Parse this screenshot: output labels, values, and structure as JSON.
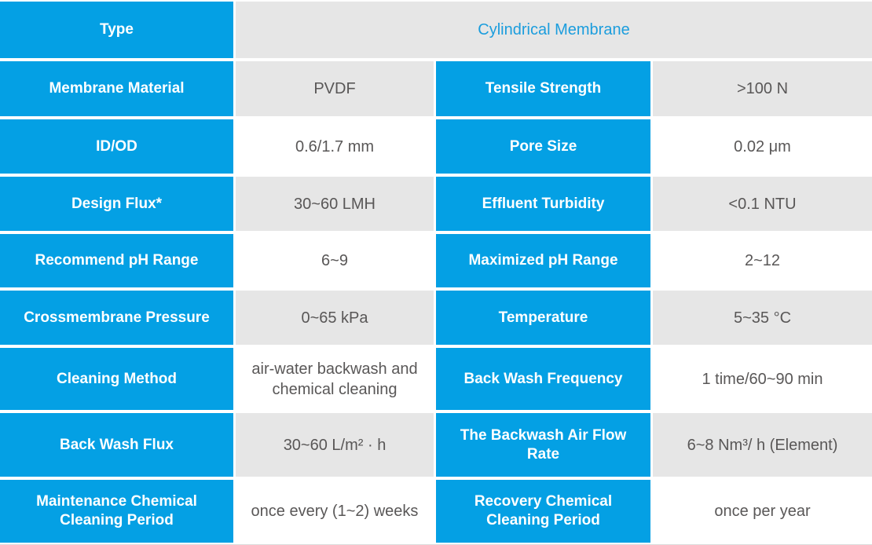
{
  "colors": {
    "header_blue": "#04a0e4",
    "cell_gray": "#e6e6e6",
    "cell_white": "#ffffff",
    "label_text": "#ffffff",
    "value_text": "#595757",
    "type_value_text": "#1b9ddd"
  },
  "table": {
    "title_row": {
      "label": "Type",
      "value": "Cylindrical Membrane"
    },
    "rows": [
      {
        "left_label": "Membrane Material",
        "left_value": "PVDF",
        "right_label": "Tensile Strength",
        "right_value": ">100 N"
      },
      {
        "left_label": "ID/OD",
        "left_value": "0.6/1.7 mm",
        "right_label": "Pore Size",
        "right_value": "0.02 μm"
      },
      {
        "left_label": "Design Flux*",
        "left_value": "30~60 LMH",
        "right_label": "Effluent Turbidity",
        "right_value": "<0.1 NTU"
      },
      {
        "left_label": "Recommend pH Range",
        "left_value": "6~9",
        "right_label": "Maximized pH Range",
        "right_value": "2~12"
      },
      {
        "left_label": "Crossmembrane Pressure",
        "left_value": "0~65 kPa",
        "right_label": "Temperature",
        "right_value": "5~35 °C"
      },
      {
        "left_label": "Cleaning Method",
        "left_value": "air-water backwash and chemical cleaning",
        "right_label": "Back Wash Frequency",
        "right_value": "1 time/60~90 min"
      },
      {
        "left_label": "Back Wash Flux",
        "left_value": "30~60 L/m² · h",
        "right_label": "The Backwash Air Flow Rate",
        "right_value": "6~8 Nm³/ h (Element)"
      },
      {
        "left_label": "Maintenance Chemical Cleaning Period",
        "left_value": "once every (1~2) weeks",
        "right_label": "Recovery Chemical Cleaning Period",
        "right_value": "once per year"
      }
    ]
  }
}
